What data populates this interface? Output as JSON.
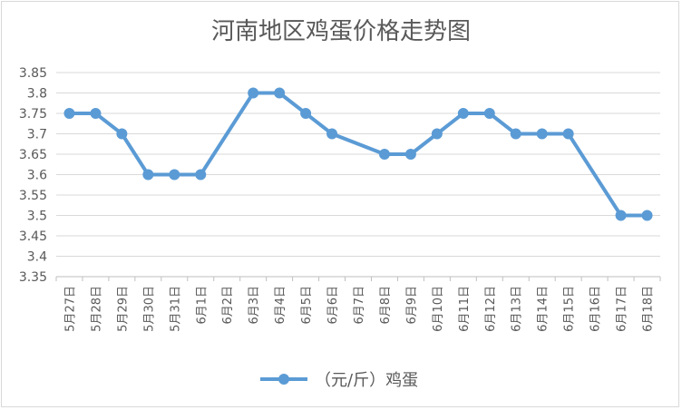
{
  "chart_data": {
    "type": "line",
    "title": "河南地区鸡蛋价格走势图",
    "categories": [
      "5月27日",
      "5月28日",
      "5月29日",
      "5月30日",
      "5月31日",
      "6月1日",
      "6月2日",
      "6月3日",
      "6月4日",
      "6月5日",
      "6月6日",
      "6月7日",
      "6月8日",
      "6月9日",
      "6月10日",
      "6月11日",
      "6月12日",
      "6月13日",
      "6月14日",
      "6月15日",
      "6月16日",
      "6月17日",
      "6月18日"
    ],
    "series": [
      {
        "name": "（元/斤）鸡蛋",
        "color": "#5b9bd5",
        "values": [
          3.75,
          3.75,
          3.7,
          3.6,
          3.6,
          3.6,
          null,
          3.8,
          3.8,
          3.75,
          3.7,
          null,
          3.65,
          3.65,
          3.7,
          3.75,
          3.75,
          3.7,
          3.7,
          3.7,
          null,
          3.5,
          3.5
        ]
      }
    ],
    "y_ticks": [
      "3.35",
      "3.4",
      "3.45",
      "3.5",
      "3.55",
      "3.6",
      "3.65",
      "3.7",
      "3.75",
      "3.8",
      "3.85"
    ],
    "ylim": [
      3.35,
      3.85
    ],
    "grid": true,
    "gaps": "connected",
    "legend_position": "bottom"
  }
}
